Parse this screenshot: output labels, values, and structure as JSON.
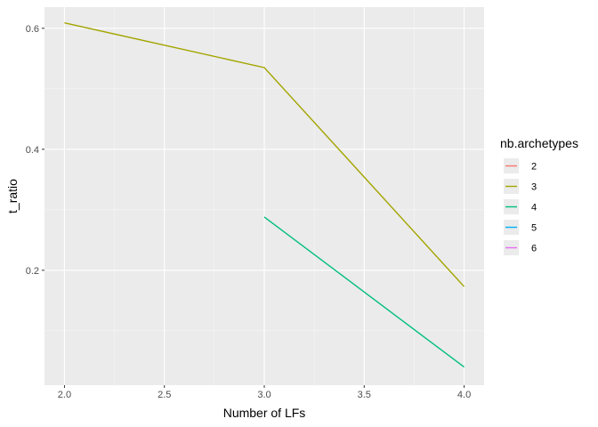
{
  "chart_data": {
    "type": "line",
    "xlabel": "Number of LFs",
    "ylabel": "t_ratio",
    "xlim": [
      1.9,
      4.1
    ],
    "ylim": [
      0.01,
      0.635
    ],
    "x_ticks": [
      2.0,
      2.5,
      3.0,
      3.5,
      4.0
    ],
    "x_tick_labels": [
      "2.0",
      "2.5",
      "3.0",
      "3.5",
      "4.0"
    ],
    "y_ticks": [
      0.2,
      0.4,
      0.6
    ],
    "y_tick_labels": [
      "0.2",
      "0.4",
      "0.6"
    ],
    "grid": true,
    "legend": {
      "title": "nb.archetypes",
      "position": "right",
      "entries": [
        {
          "label": "2",
          "color": "#F8766D"
        },
        {
          "label": "3",
          "color": "#A3A500"
        },
        {
          "label": "4",
          "color": "#00BF7D"
        },
        {
          "label": "5",
          "color": "#00B0F6"
        },
        {
          "label": "6",
          "color": "#E76BF3"
        }
      ]
    },
    "series": [
      {
        "name": "2",
        "color": "#F8766D",
        "points": []
      },
      {
        "name": "3",
        "color": "#A3A500",
        "points": [
          [
            2.0,
            0.609
          ],
          [
            3.0,
            0.535
          ],
          [
            4.0,
            0.173
          ]
        ]
      },
      {
        "name": "4",
        "color": "#00BF7D",
        "points": [
          [
            3.0,
            0.288
          ],
          [
            4.0,
            0.04
          ]
        ]
      },
      {
        "name": "5",
        "color": "#00B0F6",
        "points": []
      },
      {
        "name": "6",
        "color": "#E76BF3",
        "points": []
      }
    ]
  }
}
